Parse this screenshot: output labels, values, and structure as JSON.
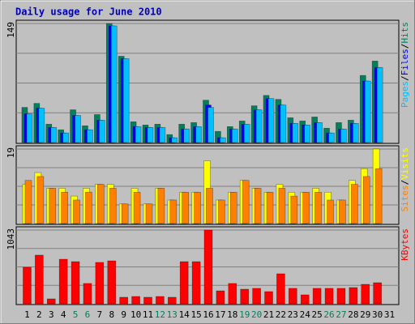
{
  "title": "Daily usage for June 2010",
  "legend_separator": "/",
  "chart_data": [
    {
      "type": "bar",
      "ylim": [
        0,
        149
      ],
      "yticks": [
        149
      ],
      "series": [
        {
          "name": "Hits",
          "color": "#00805C",
          "values": [
            44,
            49,
            23,
            16,
            41,
            21,
            35,
            149,
            108,
            26,
            22,
            23,
            10,
            23,
            25,
            53,
            14,
            20,
            27,
            46,
            59,
            54,
            31,
            27,
            32,
            18,
            25,
            28,
            84,
            102,
            null
          ]
        },
        {
          "name": "Files",
          "color": "#0000FF",
          "values": [
            36,
            43,
            19,
            12,
            34,
            16,
            28,
            146,
            105,
            20,
            19,
            19,
            6,
            17,
            20,
            47,
            6,
            17,
            23,
            41,
            55,
            47,
            24,
            22,
            25,
            12,
            17,
            24,
            77,
            94,
            null
          ]
        },
        {
          "name": "Pages",
          "color": "#00C0FF",
          "values": [
            36,
            43,
            19,
            12,
            34,
            16,
            28,
            146,
            105,
            20,
            19,
            19,
            6,
            17,
            20,
            44,
            6,
            17,
            23,
            41,
            55,
            47,
            24,
            22,
            25,
            12,
            17,
            24,
            77,
            94,
            null
          ]
        }
      ]
    },
    {
      "type": "bar",
      "ylim": [
        0,
        19
      ],
      "yticks": [
        19
      ],
      "series": [
        {
          "name": "Visits",
          "color": "#FFFF00",
          "values": [
            10,
            13,
            9,
            9,
            7,
            9,
            10,
            10,
            5,
            9,
            5,
            9,
            6,
            8,
            8,
            16,
            6,
            8,
            11,
            9,
            8,
            10,
            8,
            8,
            9,
            8,
            6,
            11,
            14,
            19,
            null
          ]
        },
        {
          "name": "Sites",
          "color": "#FF8000",
          "values": [
            11,
            12,
            9,
            8,
            6,
            8,
            10,
            9,
            5,
            8,
            5,
            9,
            6,
            8,
            8,
            9,
            6,
            8,
            11,
            9,
            8,
            9,
            7,
            8,
            8,
            6,
            6,
            10,
            12,
            14,
            null
          ]
        }
      ]
    },
    {
      "type": "bar",
      "ylim": [
        0,
        1043
      ],
      "yticks": [
        1043
      ],
      "categories": [
        "1",
        "2",
        "3",
        "4",
        "5",
        "6",
        "7",
        "8",
        "9",
        "10",
        "11",
        "12",
        "13",
        "14",
        "15",
        "16",
        "17",
        "18",
        "19",
        "20",
        "21",
        "22",
        "23",
        "24",
        "25",
        "26",
        "27",
        "28",
        "29",
        "30",
        "31"
      ],
      "category_colors": [
        "#000000",
        "#000000",
        "#000000",
        "#000000",
        "#00805C",
        "#00805C",
        "#000000",
        "#000000",
        "#000000",
        "#000000",
        "#000000",
        "#00805C",
        "#00805C",
        "#000000",
        "#000000",
        "#000000",
        "#000000",
        "#000000",
        "#00805C",
        "#00805C",
        "#000000",
        "#000000",
        "#000000",
        "#000000",
        "#000000",
        "#00805C",
        "#00805C",
        "#000000",
        "#000000",
        "#000000",
        "#000000"
      ],
      "series": [
        {
          "name": "KBytes",
          "color": "#FF0000",
          "values": [
            516,
            688,
            69,
            630,
            596,
            287,
            585,
            607,
            92,
            103,
            92,
            103,
            92,
            596,
            596,
            1043,
            183,
            287,
            206,
            218,
            172,
            424,
            218,
            126,
            218,
            218,
            218,
            229,
            275,
            298,
            null
          ]
        }
      ]
    }
  ]
}
